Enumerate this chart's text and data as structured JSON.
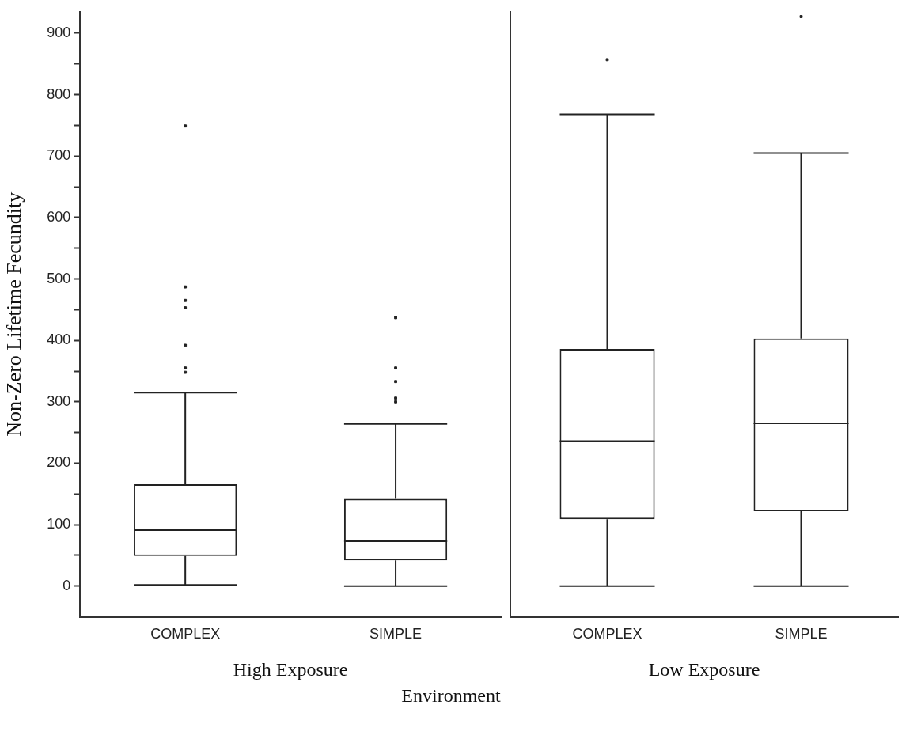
{
  "chart_data": [
    {
      "type": "box",
      "categories": [
        "COMPLEX",
        "SIMPLE"
      ],
      "boxes": [
        {
          "low": 2,
          "q1": 49,
          "median": 91,
          "q3": 166,
          "high": 315,
          "outliers": [
            348,
            355,
            392,
            453,
            465,
            487,
            749
          ]
        },
        {
          "low": 0,
          "q1": 42,
          "median": 73,
          "q3": 142,
          "high": 264,
          "outliers": [
            300,
            306,
            333,
            355,
            437
          ]
        }
      ],
      "color": "#222222",
      "ylabel": "Non-Zero Lifetime Fecundity",
      "xlabel": "High Exposure",
      "annotations": [
        "Environment"
      ],
      "ylim": [
        -50,
        935
      ],
      "yticks": [
        0,
        {
          "value": 50,
          "label": null
        },
        100,
        {
          "value": 150,
          "label": null
        },
        200,
        {
          "value": 250,
          "label": null
        },
        300,
        {
          "value": 350,
          "label": null
        },
        400,
        {
          "value": 450,
          "label": null
        },
        500,
        {
          "value": 550,
          "label": null
        },
        600,
        {
          "value": 650,
          "label": null
        },
        700,
        {
          "value": 750,
          "label": null
        },
        800,
        {
          "value": 850,
          "label": null
        },
        900
      ],
      "grid": false
    },
    {
      "type": "box",
      "categories": [
        "COMPLEX",
        "SIMPLE"
      ],
      "boxes": [
        {
          "low": 0,
          "q1": 109,
          "median": 236,
          "q3": 386,
          "high": 768,
          "outliers": [
            857
          ]
        },
        {
          "low": 0,
          "q1": 122,
          "median": 265,
          "q3": 403,
          "high": 705,
          "outliers": [
            927
          ]
        }
      ],
      "color": "#222222",
      "xlabel": "Low Exposure",
      "ylim": [
        -50,
        935
      ],
      "tick_labels": "x",
      "grid": false
    }
  ]
}
